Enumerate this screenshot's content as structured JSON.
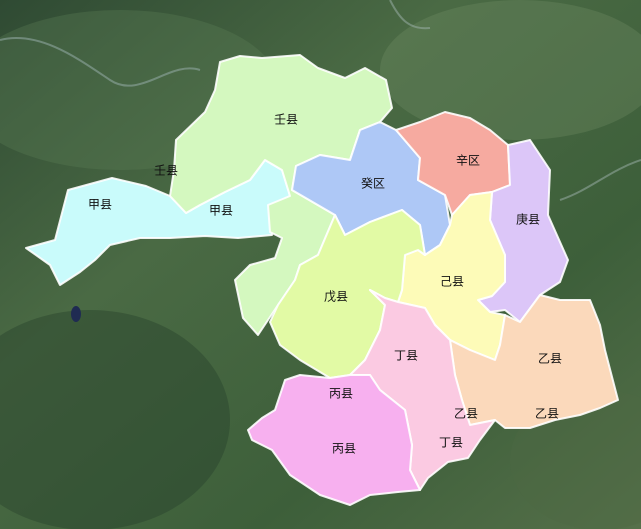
{
  "colors": {
    "jia": "#c9fbfb",
    "ren": "#d4f8bf",
    "gui": "#aec8f6",
    "xin": "#f6aaa0",
    "geng": "#dcc6f8",
    "ji": "#fdfbb8",
    "wu": "#e2faa5",
    "ding": "#fbcae2",
    "yi": "#fbd9bb",
    "bing": "#f7b0ef"
  },
  "labels": {
    "ren_upper": "壬县",
    "ren_small": "壬县",
    "jia_left": "甲县",
    "jia_right": "甲县",
    "gui": "癸区",
    "xin": "辛区",
    "geng": "庚县",
    "ji": "己县",
    "wu": "戊县",
    "ding_upper": "丁县",
    "ding_lower": "丁县",
    "yi_a": "乙县",
    "yi_b": "乙县",
    "yi_c": "乙县",
    "bing_upper": "丙县",
    "bing_lower": "丙县"
  }
}
